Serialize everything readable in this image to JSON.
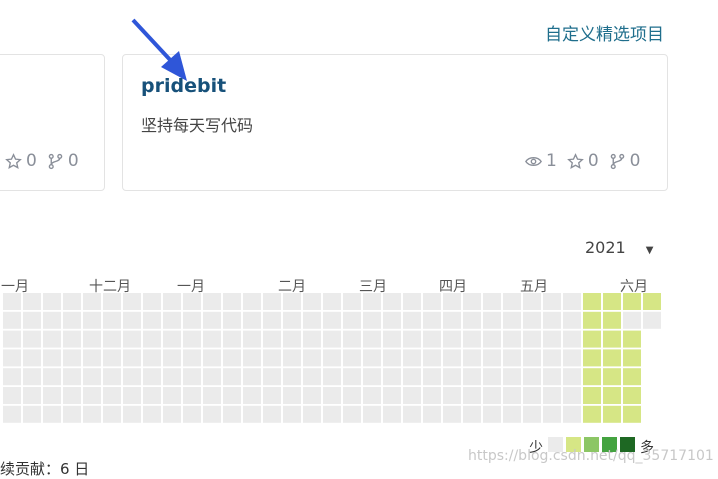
{
  "header": {
    "link": "自定义精选项目"
  },
  "cards": [
    {
      "stars": "0",
      "forks": "0"
    },
    {
      "title": "pridebit",
      "description": "坚持每天写代码",
      "watches": "1",
      "stars": "0",
      "forks": "0"
    }
  ],
  "calendar": {
    "year": "2021",
    "months": [
      "一月",
      "十二月",
      "一月",
      "二月",
      "三月",
      "四月",
      "五月",
      "六月"
    ],
    "legend": {
      "less": "少",
      "more": "多"
    }
  },
  "footer": {
    "streak": "续贡献：6 日",
    "watermark": "https://blog.csdn.net/qq_35717101"
  }
}
